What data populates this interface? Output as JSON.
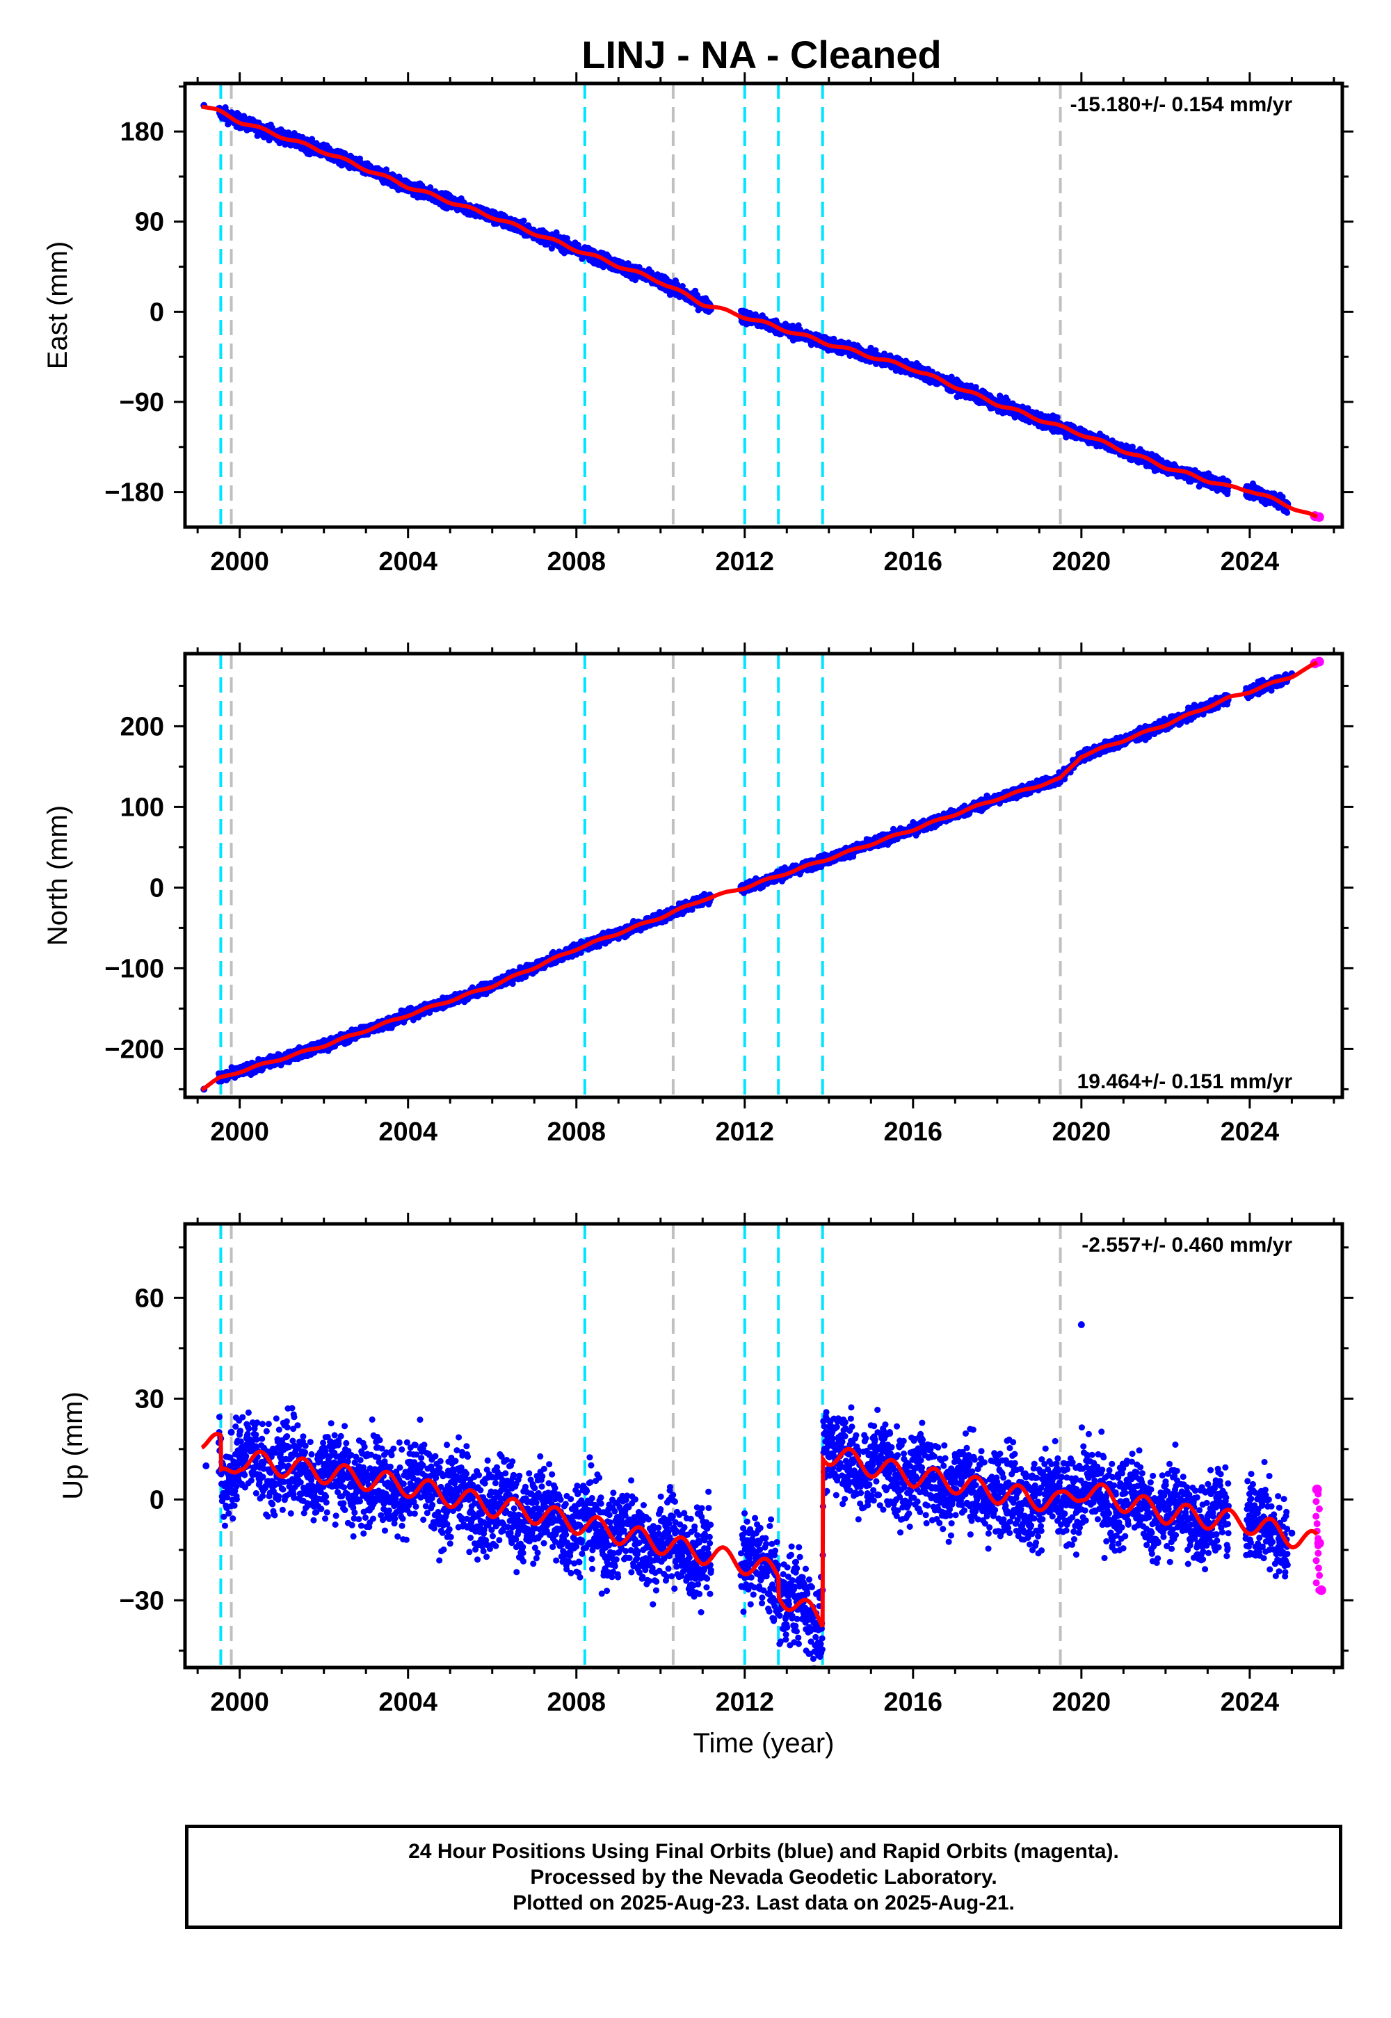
{
  "title": "LINJ  - NA - Cleaned",
  "colors": {
    "final_orbits": "#0000ff",
    "rapid_orbits": "#ff00ff",
    "model": "#ff0000",
    "earthquake_offset": "#00e5ff",
    "equipment_change": "#c0c0c0"
  },
  "chart_data": [
    {
      "type": "scatter",
      "ylabel": "East (mm)",
      "xlabel": "",
      "rate_label": "-15.180+/- 0.154 mm/yr",
      "xlim": [
        1998.7,
        2026.2
      ],
      "ylim": [
        -215,
        228
      ],
      "xticks": [
        2000,
        2004,
        2008,
        2012,
        2016,
        2020,
        2024
      ],
      "xticklabels": [
        "2000",
        "2004",
        "2008",
        "2012",
        "2016",
        "2020",
        "2024"
      ],
      "yticks": [
        -180,
        -90,
        0,
        90,
        180
      ],
      "yticklabels": [
        "−180",
        "−90",
        "0",
        "90",
        "180"
      ],
      "legend": "none",
      "grid": false,
      "series": [
        {
          "points": [
            [
              1999.15,
              206
            ],
            [
              1999.6,
              200
            ],
            [
              2000,
              190
            ],
            [
              2002,
              160
            ],
            [
              2004,
              124
            ],
            [
              2006,
              97
            ],
            [
              2008,
              62
            ],
            [
              2010,
              32
            ],
            [
              2011,
              8
            ],
            [
              2012,
              -5
            ],
            [
              2014,
              -35
            ],
            [
              2016,
              -57
            ],
            [
              2018,
              -95
            ],
            [
              2019.5,
              -115
            ],
            [
              2020,
              -120
            ],
            [
              2022,
              -155
            ],
            [
              2024,
              -185
            ],
            [
              2024.9,
              -192
            ]
          ]
        },
        {
          "points": [
            [
              2025.55,
              -204
            ],
            [
              2025.65,
              -205
            ]
          ]
        },
        {
          "points": [
            [
              1999.1,
              206
            ],
            [
              1999.5,
              200
            ],
            [
              2000,
              190
            ],
            [
              2002,
              160
            ],
            [
              2004,
              125
            ],
            [
              2006,
              95
            ],
            [
              2008,
              62
            ],
            [
              2010,
              30
            ],
            [
              2011,
              8
            ],
            [
              2012,
              -5
            ],
            [
              2014,
              -32
            ],
            [
              2016,
              -57
            ],
            [
              2018,
              -92
            ],
            [
              2019.5,
              -115
            ],
            [
              2020,
              -122
            ],
            [
              2022,
              -155
            ],
            [
              2023.5,
              -175
            ],
            [
              2024,
              -178
            ],
            [
              2025,
              -195
            ],
            [
              2025.6,
              -206
            ]
          ]
        }
      ],
      "offsets": {
        "earthquake": [
          1999.55,
          2008.2,
          2012.0,
          2012.8,
          2013.85
        ],
        "equipment": [
          1999.8,
          2010.3,
          2019.5
        ]
      }
    },
    {
      "type": "scatter",
      "ylabel": "North (mm)",
      "xlabel": "",
      "rate_label": "19.464+/- 0.151 mm/yr",
      "xlim": [
        1998.7,
        2026.2
      ],
      "ylim": [
        -260,
        290
      ],
      "xticks": [
        2000,
        2004,
        2008,
        2012,
        2016,
        2020,
        2024
      ],
      "xticklabels": [
        "2000",
        "2004",
        "2008",
        "2012",
        "2016",
        "2020",
        "2024"
      ],
      "yticks": [
        -200,
        -100,
        0,
        100,
        200
      ],
      "yticklabels": [
        "−200",
        "−100",
        "0",
        "100",
        "200"
      ],
      "legend": "none",
      "grid": false,
      "series": [
        {
          "points": [
            [
              1999.15,
              -250
            ],
            [
              1999.6,
              -237
            ],
            [
              2000,
              -228
            ],
            [
              2002,
              -195
            ],
            [
              2004,
              -158
            ],
            [
              2006,
              -123
            ],
            [
              2008,
              -75
            ],
            [
              2010,
              -35
            ],
            [
              2011,
              -15
            ],
            [
              2012,
              0
            ],
            [
              2014,
              35
            ],
            [
              2016,
              70
            ],
            [
              2018,
              110
            ],
            [
              2019.5,
              140
            ],
            [
              2020,
              165
            ],
            [
              2022,
              200
            ],
            [
              2024,
              245
            ],
            [
              2025,
              265
            ]
          ]
        },
        {
          "points": [
            [
              2025.55,
              278
            ],
            [
              2025.65,
              280
            ]
          ]
        },
        {
          "points": [
            [
              1999.1,
              -250
            ],
            [
              1999.5,
              -237
            ],
            [
              2000,
              -228
            ],
            [
              2002,
              -196
            ],
            [
              2004,
              -158
            ],
            [
              2006,
              -122
            ],
            [
              2008,
              -76
            ],
            [
              2010,
              -37
            ],
            [
              2011,
              -15
            ],
            [
              2012,
              0
            ],
            [
              2014,
              36
            ],
            [
              2016,
              72
            ],
            [
              2018,
              110
            ],
            [
              2019.5,
              135
            ],
            [
              2020,
              163
            ],
            [
              2022,
              202
            ],
            [
              2023.5,
              235
            ],
            [
              2024,
              243
            ],
            [
              2025,
              262
            ],
            [
              2025.6,
              278
            ]
          ]
        }
      ],
      "offsets": {
        "earthquake": [
          1999.55,
          2008.2,
          2012.0,
          2012.8,
          2013.85
        ],
        "equipment": [
          1999.8,
          2010.3,
          2019.5
        ]
      }
    },
    {
      "type": "scatter",
      "ylabel": "Up (mm)",
      "xlabel": "Time (year)",
      "rate_label": "-2.557+/- 0.460 mm/yr",
      "xlim": [
        1998.7,
        2026.2
      ],
      "ylim": [
        -50,
        82
      ],
      "xticks": [
        2000,
        2004,
        2008,
        2012,
        2016,
        2020,
        2024
      ],
      "xticklabels": [
        "2000",
        "2004",
        "2008",
        "2012",
        "2016",
        "2020",
        "2024"
      ],
      "yticks": [
        -30,
        0,
        30,
        60
      ],
      "yticklabels": [
        "−30",
        "0",
        "30",
        "60"
      ],
      "legend": "none",
      "grid": false,
      "series": [
        {
          "points": [
            [
              1999.2,
              10
            ],
            [
              1999.8,
              20
            ],
            [
              2000,
              8
            ],
            [
              2001,
              12
            ],
            [
              2002,
              5
            ],
            [
              2003,
              8
            ],
            [
              2004,
              3
            ],
            [
              2005,
              2
            ],
            [
              2006,
              -3
            ],
            [
              2007,
              -5
            ],
            [
              2008,
              -8
            ],
            [
              2009,
              -12
            ],
            [
              2010,
              -16
            ],
            [
              2011,
              -18
            ],
            [
              2012,
              -21
            ],
            [
              2013,
              -38
            ],
            [
              2013.9,
              15
            ],
            [
              2015,
              10
            ],
            [
              2016,
              5
            ],
            [
              2017,
              7
            ],
            [
              2018,
              3
            ],
            [
              2019,
              2
            ],
            [
              2020,
              52
            ],
            [
              2020.5,
              0
            ],
            [
              2022,
              -3
            ],
            [
              2023,
              -5
            ],
            [
              2024,
              -12
            ],
            [
              2025,
              -10
            ]
          ]
        },
        {
          "points": [
            [
              2025.6,
              3
            ],
            [
              2025.65,
              -13
            ],
            [
              2025.7,
              -27
            ]
          ]
        },
        {
          "points": [
            [
              1999.1,
              18
            ],
            [
              1999.55,
              16
            ],
            [
              1999.56,
              6
            ],
            [
              2000,
              12
            ],
            [
              2001,
              10
            ],
            [
              2002,
              8
            ],
            [
              2003,
              6
            ],
            [
              2004,
              4
            ],
            [
              2005,
              1
            ],
            [
              2006,
              -2
            ],
            [
              2007,
              -4
            ],
            [
              2008,
              -7
            ],
            [
              2009,
              -10
            ],
            [
              2010,
              -13
            ],
            [
              2011,
              -16
            ],
            [
              2012,
              -19
            ],
            [
              2012.8,
              -22
            ],
            [
              2012.81,
              -28
            ],
            [
              2013.85,
              -36
            ],
            [
              2013.86,
              14
            ],
            [
              2015,
              10
            ],
            [
              2016,
              7
            ],
            [
              2017,
              5
            ],
            [
              2018,
              2
            ],
            [
              2019.5,
              -1
            ],
            [
              2020,
              3
            ],
            [
              2022,
              -4
            ],
            [
              2024,
              -7
            ],
            [
              2025,
              -11
            ],
            [
              2025.6,
              -13
            ]
          ]
        }
      ],
      "offsets": {
        "earthquake": [
          1999.55,
          2008.2,
          2012.0,
          2012.8,
          2013.85
        ],
        "equipment": [
          1999.8,
          2010.3,
          2019.5
        ]
      }
    }
  ],
  "footer": {
    "line1": "24 Hour Positions Using Final Orbits (blue) and Rapid Orbits (magenta).",
    "line2": "Processed by the Nevada Geodetic Laboratory.",
    "line3": "Plotted on 2025-Aug-23. Last data on 2025-Aug-21."
  }
}
